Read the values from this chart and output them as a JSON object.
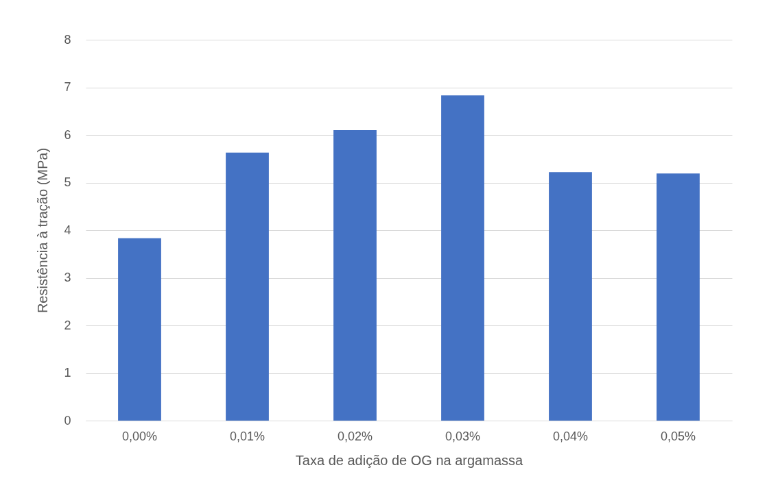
{
  "chart_data": {
    "type": "bar",
    "xlabel": "Taxa de adição de OG na argamassa",
    "ylabel": "Resistência à tração (MPa)",
    "categories": [
      "0,00%",
      "0,01%",
      "0,02%",
      "0,03%",
      "0,04%",
      "0,05%"
    ],
    "values": [
      3.83,
      5.63,
      6.1,
      6.83,
      5.22,
      5.19
    ],
    "color": "#4472c4",
    "ylim": [
      0,
      8
    ],
    "yticks": [
      0,
      1,
      2,
      3,
      4,
      5,
      6,
      7,
      8
    ],
    "grid": "y"
  }
}
